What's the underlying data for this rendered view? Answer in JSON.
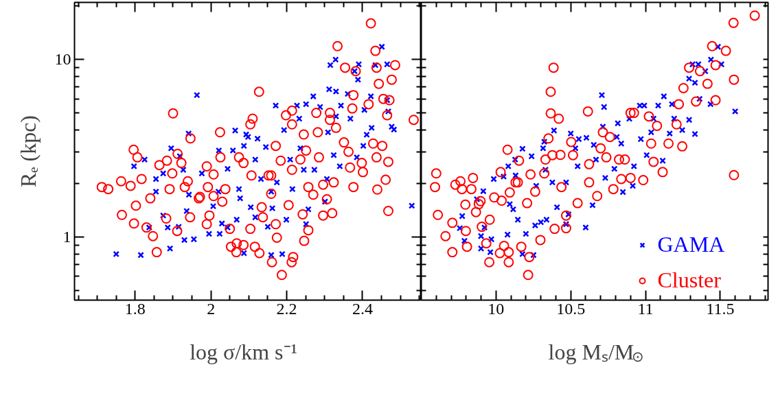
{
  "chart_data": [
    {
      "type": "scatter",
      "xlabel": "log σ/km s⁻¹",
      "ylabel": "Rₑ (kpc)",
      "log": "y",
      "xlim": [
        1.64,
        2.555
      ],
      "ylim": [
        0.44,
        21
      ],
      "xticks": [
        {
          "value": 1.65,
          "label": null
        },
        {
          "value": 1.7,
          "label": null
        },
        {
          "value": 1.75,
          "label": null
        },
        1.8,
        {
          "value": 1.85,
          "label": null
        },
        {
          "value": 1.9,
          "label": null
        },
        {
          "value": 1.95,
          "label": null
        },
        2,
        {
          "value": 2.05,
          "label": null
        },
        {
          "value": 2.1,
          "label": null
        },
        {
          "value": 2.15,
          "label": null
        },
        2.2,
        {
          "value": 2.25,
          "label": null
        },
        {
          "value": 2.3,
          "label": null
        },
        {
          "value": 2.35,
          "label": null
        },
        2.4,
        {
          "value": 2.45,
          "label": null
        },
        {
          "value": 2.5,
          "label": null
        },
        {
          "value": 2.55,
          "label": null
        }
      ],
      "yticks": [
        {
          "value": 0.5,
          "label": null
        },
        {
          "value": 0.6,
          "label": null
        },
        {
          "value": 0.7,
          "label": null
        },
        {
          "value": 0.8,
          "label": null
        },
        {
          "value": 0.9,
          "label": null
        },
        1,
        {
          "value": 2,
          "label": null
        },
        {
          "value": 3,
          "label": null
        },
        {
          "value": 4,
          "label": null
        },
        {
          "value": 5,
          "label": null
        },
        {
          "value": 6,
          "label": null
        },
        {
          "value": 7,
          "label": null
        },
        {
          "value": 8,
          "label": null
        },
        {
          "value": 9,
          "label": null
        },
        10,
        {
          "value": 20,
          "label": null
        }
      ],
      "series": [
        {
          "color": "#0000ff",
          "marker": "cross",
          "x": [
            1.75,
            1.815,
            1.797,
            1.825,
            1.855,
            1.855,
            1.874,
            1.874,
            1.886,
            1.892,
            1.895,
            1.837,
            1.915,
            1.918,
            1.927,
            1.93,
            1.936,
            1.941,
            1.942,
            1.955,
            1.963,
            1.976,
            1.995,
            2.006,
            2.02,
            2.021,
            2.023,
            2.029,
            2.044,
            2.044,
            2.058,
            2.064,
            2.068,
            2.074,
            2.077,
            2.087,
            2.087,
            2.093,
            2.098,
            2.105,
            2.117,
            2.123,
            2.117,
            2.132,
            2.145,
            2.15,
            2.159,
            2.162,
            2.171,
            2.174,
            2.188,
            2.193,
            2.199,
            2.209,
            2.227,
            2.233,
            2.236,
            2.251,
            2.251,
            2.257,
            2.27,
            2.273,
            2.288,
            2.301,
            2.306,
            2.312,
            2.315,
            2.329,
            2.33,
            2.309,
            2.324,
            2.34,
            2.343,
            2.361,
            2.379,
            2.388,
            2.39,
            2.385,
            2.402,
            2.405,
            2.411,
            2.424,
            2.422,
            2.434,
            2.451,
            2.465,
            2.468,
            2.477,
            2.483,
            2.53,
            2.465,
            2.368,
            2.33,
            2.215,
            2.159,
            2.245
          ],
          "values": [
            0.8,
            0.79,
            2.5,
            2.73,
            2.12,
            1.8,
            2.28,
            1.32,
            1.13,
            0.86,
            3.16,
            1.13,
            1.14,
            2.85,
            2.39,
            0.96,
            1.4,
            3.83,
            1.73,
            0.97,
            6.3,
            2.28,
            1.04,
            1.49,
            1.8,
            3.07,
            1.04,
            1.19,
            1.13,
            2.42,
            3.07,
            3.98,
            1.25,
            1.86,
            1.65,
            0.81,
            3.26,
            3.78,
            3.66,
            1.47,
            2.73,
            3.58,
            1.29,
            2.12,
            3.21,
            1.14,
            0.79,
            1.45,
            5.5,
            2.03,
            0.8,
            4.0,
            1.25,
            2.73,
            5.5,
            4.64,
            3.16,
            5.6,
            1.18,
            1.43,
            6.2,
            2.39,
            5.4,
            1.58,
            2.12,
            6.8,
            9.3,
            10.0,
            6.6,
            3.89,
            2.89,
            2.5,
            5.5,
            6.4,
            8.6,
            7.7,
            9.4,
            2.81,
            3.26,
            5.2,
            3.77,
            4.12,
            6.2,
            9.3,
            11.8,
            9.4,
            5.1,
            4.18,
            4.03,
            1.5,
            5.9,
            4.64,
            4.78,
            1.86,
            1.8,
            2.39
          ]
        },
        {
          "color": "#ff0000",
          "marker": "circle",
          "x": [
            1.712,
            1.729,
            1.763,
            1.765,
            1.796,
            1.806,
            1.788,
            1.797,
            1.802,
            1.817,
            1.83,
            1.847,
            1.857,
            1.84,
            1.864,
            1.884,
            1.9,
            1.891,
            1.882,
            1.912,
            1.922,
            1.939,
            1.946,
            1.945,
            1.911,
            1.968,
            1.989,
            1.992,
            1.989,
            2.007,
            1.996,
            2.024,
            2.025,
            2.03,
            2.05,
            2.053,
            2.067,
            2.068,
            2.086,
            2.074,
            2.086,
            2.104,
            2.11,
            2.107,
            2.104,
            2.116,
            2.127,
            2.128,
            2.134,
            2.137,
            2.152,
            2.159,
            2.171,
            2.171,
            2.174,
            2.161,
            2.187,
            2.184,
            2.198,
            2.214,
            2.214,
            2.214,
            2.217,
            2.213,
            2.205,
            2.242,
            2.246,
            2.257,
            2.236,
            2.251,
            2.257,
            2.278,
            2.282,
            2.285,
            2.27,
            2.296,
            2.296,
            2.306,
            2.32,
            2.314,
            2.314,
            2.334,
            2.324,
            2.33,
            2.354,
            2.351,
            2.363,
            2.376,
            2.382,
            2.373,
            2.376,
            2.367,
            2.398,
            2.401,
            2.416,
            2.422,
            2.434,
            2.437,
            2.428,
            2.437,
            2.439,
            2.443,
            2.452,
            2.461,
            2.468,
            2.465,
            2.471,
            2.468,
            2.477,
            2.486,
            2.535,
            2.455,
            2.245,
            2.159,
            1.971,
            2.038,
            2.007,
            1.898,
            1.931
          ],
          "values": [
            1.91,
            1.86,
            2.06,
            1.33,
            3.1,
            2.81,
            1.94,
            1.19,
            1.5,
            2.12,
            1.13,
            1.01,
            0.82,
            1.65,
            2.54,
            2.69,
            4.97,
            1.86,
            1.27,
            2.94,
            2.61,
            2.06,
            3.59,
            1.29,
            1.08,
            1.65,
            2.5,
            1.91,
            1.18,
            2.25,
            1.32,
            3.89,
            2.81,
            1.58,
            1.11,
            0.88,
            0.82,
            0.92,
            0.9,
            2.81,
            2.61,
            4.31,
            4.64,
            2.22,
            1.11,
            0.88,
            6.58,
            0.81,
            1.47,
            1.29,
            2.22,
            1.75,
            3.26,
            1.18,
            0.99,
            0.72,
            0.61,
            2.69,
            4.85,
            5.15,
            4.31,
            2.39,
            0.77,
            0.72,
            1.51,
            1.34,
            0.95,
            1.09,
            2.73,
            3.07,
            1.91,
            5.0,
            3.89,
            2.81,
            1.73,
            1.32,
            1.97,
            1.63,
            1.36,
            5.0,
            4.57,
            11.9,
            2.03,
            4.12,
            9.0,
            3.41,
            3.02,
            6.3,
            8.6,
            5.3,
            1.91,
            2.46,
            2.61,
            2.32,
            5.6,
            16.0,
            11.2,
            9.0,
            3.36,
            2.81,
            1.85,
            7.3,
            3.26,
            2.1,
            1.4,
            4.85,
            5.9,
            2.65,
            7.7,
            9.3,
            4.57,
            6.0,
            3.78,
            2.22,
            1.68,
            1.86,
            1.7,
            2.28,
            1.91
          ]
        }
      ]
    },
    {
      "type": "scatter",
      "xlabel": "log Mₛ/M$_{⊙}$",
      "log": "y",
      "tick_labels": "x",
      "legend": "bottom right",
      "xlim": [
        9.5,
        11.82
      ],
      "ylim": [
        0.44,
        21
      ],
      "xticks": [
        {
          "value": 9.6,
          "label": null
        },
        {
          "value": 9.7,
          "label": null
        },
        {
          "value": 9.8,
          "label": null
        },
        {
          "value": 9.9,
          "label": null
        },
        10,
        {
          "value": 10.1,
          "label": null
        },
        {
          "value": 10.2,
          "label": null
        },
        {
          "value": 10.3,
          "label": null
        },
        {
          "value": 10.4,
          "label": null
        },
        10.5,
        {
          "value": 10.6,
          "label": null
        },
        {
          "value": 10.7,
          "label": null
        },
        {
          "value": 10.8,
          "label": null
        },
        {
          "value": 10.9,
          "label": null
        },
        11,
        {
          "value": 11.1,
          "label": null
        },
        {
          "value": 11.2,
          "label": null
        },
        {
          "value": 11.3,
          "label": null
        },
        {
          "value": 11.4,
          "label": null
        },
        11.5,
        {
          "value": 11.6,
          "label": null
        },
        {
          "value": 11.7,
          "label": null
        },
        {
          "value": 11.8,
          "label": null
        }
      ],
      "yticks": [
        {
          "value": 0.5,
          "label": null
        },
        {
          "value": 0.6,
          "label": null
        },
        {
          "value": 0.7,
          "label": null
        },
        {
          "value": 0.8,
          "label": null
        },
        {
          "value": 0.9,
          "label": null
        },
        {
          "value": 1,
          "label": null
        },
        {
          "value": 2,
          "label": null
        },
        {
          "value": 3,
          "label": null
        },
        {
          "value": 4,
          "label": null
        },
        {
          "value": 5,
          "label": null
        },
        {
          "value": 6,
          "label": null
        },
        {
          "value": 7,
          "label": null
        },
        {
          "value": 8,
          "label": null
        },
        {
          "value": 9,
          "label": null
        },
        {
          "value": 10,
          "label": null
        },
        {
          "value": 20,
          "label": null
        }
      ],
      "series": [
        {
          "name": "GAMA",
          "color": "#0000ff",
          "marker": "cross",
          "x": [
            9.774,
            9.758,
            9.789,
            9.872,
            9.9,
            9.9,
            9.915,
            9.923,
            9.962,
            9.969,
            9.985,
            10.051,
            10.077,
            10.082,
            10.092,
            10.131,
            10.128,
            10.146,
            10.177,
            10.177,
            10.2,
            10.238,
            10.251,
            10.262,
            10.269,
            10.3,
            10.315,
            10.323,
            10.331,
            10.338,
            10.388,
            10.377,
            10.408,
            10.469,
            10.485,
            10.5,
            10.531,
            10.554,
            10.546,
            10.6,
            10.605,
            10.646,
            10.654,
            10.669,
            10.708,
            10.723,
            10.715,
            10.731,
            10.792,
            10.815,
            10.838,
            10.849,
            10.892,
            10.915,
            10.923,
            10.962,
            10.969,
            10.992,
            11.008,
            11.038,
            11.085,
            11.123,
            11.115,
            11.162,
            11.177,
            11.192,
            11.246,
            11.292,
            11.292,
            11.331,
            11.331,
            11.315,
            11.354,
            11.4,
            11.438,
            11.435,
            11.485,
            11.508,
            11.6,
            11.362,
            11.054,
            10.469,
            10.808,
            10.115
          ],
          "values": [
            1.31,
            1.12,
            0.95,
            1.63,
            1.01,
            0.86,
            1.81,
            1.13,
            0.82,
            0.97,
            2.12,
            2.19,
            1.03,
            2.5,
            1.53,
            2.22,
            2.73,
            1.25,
            3.14,
            0.8,
            1.04,
            2.85,
            0.79,
            1.16,
            1.94,
            1.21,
            3.16,
            3.44,
            2.39,
            1.25,
            3.98,
            2.03,
            1.47,
            1.18,
            1.34,
            3.83,
            3.16,
            3.56,
            2.5,
            1.13,
            3.62,
            1.51,
            3.3,
            2.73,
            6.3,
            5.4,
            4.18,
            2.15,
            2.42,
            4.37,
            3.36,
            1.79,
            4.64,
            1.94,
            2.5,
            5.5,
            3.56,
            5.5,
            2.89,
            3.89,
            5.5,
            6.2,
            2.69,
            3.83,
            5.6,
            4.64,
            4.0,
            7.8,
            4.57,
            7.4,
            3.8,
            9.4,
            9.4,
            8.6,
            10.0,
            5.6,
            11.8,
            9.4,
            5.1,
            6.0,
            4.64,
            2.03,
            3.66,
            1.43
          ]
        },
        {
          "name": "Cluster",
          "color": "#ff0000",
          "marker": "circle",
          "x": [
            9.6,
            9.592,
            9.611,
            9.662,
            9.708,
            9.708,
            9.728,
            9.762,
            9.772,
            9.798,
            9.806,
            9.795,
            9.835,
            9.846,
            9.866,
            9.897,
            9.905,
            9.935,
            9.955,
            9.958,
            9.988,
            10.031,
            10.026,
            10.054,
            10.077,
            10.085,
            10.085,
            10.092,
            10.131,
            10.154,
            10.169,
            10.215,
            10.223,
            10.208,
            10.231,
            10.262,
            10.297,
            10.323,
            10.351,
            10.366,
            10.366,
            10.385,
            10.392,
            10.377,
            10.42,
            10.431,
            10.438,
            10.469,
            10.469,
            10.503,
            10.515,
            10.546,
            10.615,
            10.623,
            10.677,
            10.7,
            10.715,
            10.738,
            10.762,
            10.785,
            10.838,
            10.862,
            10.9,
            10.9,
            10.923,
            10.985,
            11.023,
            11.038,
            11.054,
            11.077,
            11.115,
            11.154,
            11.208,
            11.223,
            11.246,
            11.254,
            11.292,
            11.338,
            11.365,
            11.415,
            11.446,
            11.469,
            11.469,
            11.538,
            11.589,
            11.592,
            11.592,
            11.731,
            10.823,
            10.146,
            10.038,
            10.331,
            10.623,
            9.885
          ],
          "values": [
            2.28,
            1.91,
            1.33,
            1.01,
            0.82,
            1.2,
            1.97,
            2.06,
            1.86,
            1.08,
            0.88,
            1.52,
            1.86,
            2.15,
            1.38,
            1.59,
            1.14,
            0.92,
            0.72,
            1.25,
            1.67,
            2.32,
            0.81,
            0.89,
            3.1,
            0.72,
            0.82,
            1.78,
            2.03,
            2.69,
            0.88,
            0.61,
            0.77,
            1.55,
            2.25,
            1.8,
            0.96,
            2.28,
            3.59,
            4.97,
            6.58,
            9.0,
            1.11,
            2.89,
            4.64,
            2.9,
            1.91,
            1.32,
            1.12,
            3.43,
            2.89,
            1.55,
            5.1,
            2.03,
            1.7,
            3.16,
            3.89,
            2.81,
            3.66,
            1.86,
            2.12,
            2.73,
            2.15,
            5.0,
            5.0,
            2.09,
            4.78,
            3.36,
            2.65,
            4.23,
            2.32,
            3.36,
            4.31,
            5.6,
            3.24,
            6.9,
            9.0,
            5.8,
            8.6,
            7.3,
            11.9,
            9.3,
            5.9,
            11.2,
            16.1,
            7.7,
            2.23,
            17.7,
            2.73,
            2.03,
            1.6,
            2.73,
            2.57,
            1.53
          ]
        }
      ]
    }
  ]
}
